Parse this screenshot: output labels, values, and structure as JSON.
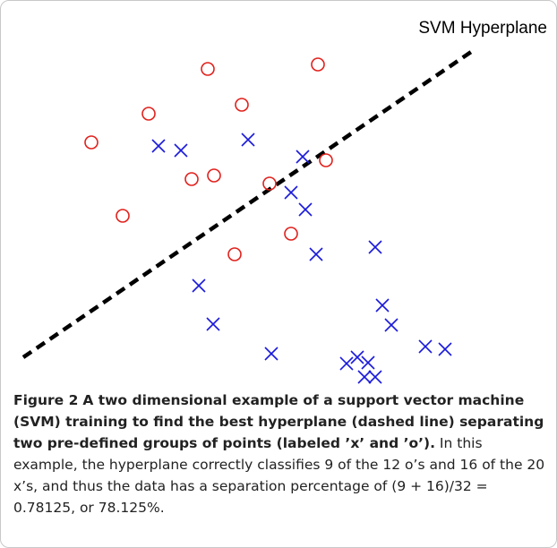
{
  "chart_data": {
    "type": "scatter",
    "annotation": "SVM Hyperplane",
    "xlim": [
      0,
      600
    ],
    "ylim": [
      0,
      420
    ],
    "hyperplane": {
      "x": [
        15,
        515
      ],
      "y": [
        42,
        383
      ],
      "color": "#000000",
      "dashed": true
    },
    "series": [
      {
        "marker": "circle",
        "color": "#e0201b",
        "x": [
          221,
          344,
          155,
          259,
          91,
          203,
          228,
          290,
          353,
          126,
          251,
          314
        ],
        "values": [
          364,
          369,
          314,
          324,
          282,
          241,
          245,
          236,
          262,
          200,
          157,
          180
        ]
      },
      {
        "marker": "x",
        "color": "#1a1adb",
        "x": [
          166,
          191,
          266,
          327,
          314,
          330,
          342,
          408,
          211,
          227,
          416,
          426,
          292,
          376,
          388,
          400,
          396,
          408,
          464,
          486
        ],
        "values": [
          278,
          273,
          285,
          266,
          226,
          207,
          157,
          165,
          122,
          79,
          100,
          78,
          46,
          35,
          42,
          36,
          20,
          20,
          54,
          51
        ]
      }
    ]
  },
  "caption": {
    "label": "Figure 2",
    "bold": "A two dimensional example of a support vector machine (SVM) training to find the best hyperplane (dashed line) separating two pre-defined groups of points (labeled ’x’ and ’o’).",
    "text": "In this example, the hyperplane correctly classifies 9 of the 12 o’s and 16 of the 20 x’s, and thus the data has a separation percentage of (9 + 16)/32 = 0.78125, or 78.125%."
  }
}
